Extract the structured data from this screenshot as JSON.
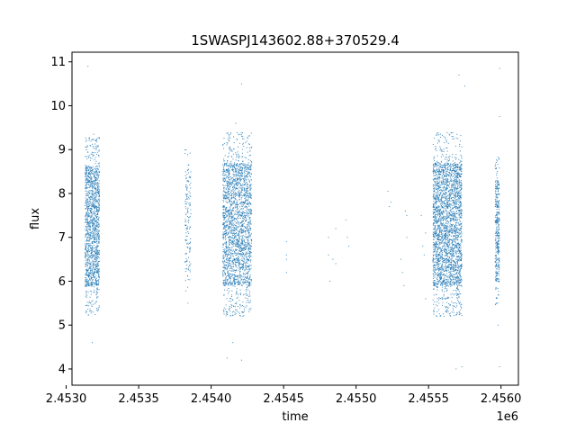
{
  "chart_data": {
    "type": "scatter",
    "title": "1SWASPJ143602.88+370529.4",
    "xlabel": "time",
    "ylabel": "flux",
    "x_offset_label": "1e6",
    "xlim": [
      2.45304,
      2.45612
    ],
    "ylim": [
      3.63,
      11.22
    ],
    "x_ticks": [
      2.453,
      2.4535,
      2.454,
      2.4545,
      2.455,
      2.4555,
      2.456
    ],
    "x_tick_labels": [
      "2.4530",
      "2.4535",
      "2.4540",
      "2.4545",
      "2.4550",
      "2.4555",
      "2.4560"
    ],
    "y_ticks": [
      4,
      5,
      6,
      7,
      8,
      9,
      10,
      11
    ],
    "y_tick_labels": [
      "4",
      "5",
      "6",
      "7",
      "8",
      "9",
      "10",
      "11"
    ],
    "grid": false,
    "marker_color": "#1f77b4",
    "clusters": [
      {
        "x_start": 2.45313,
        "x_end": 2.45323,
        "y_low": 5.9,
        "y_high": 8.6,
        "points": 1400
      },
      {
        "x_start": 2.45382,
        "x_end": 2.45386,
        "y_low": 6.2,
        "y_high": 8.5,
        "points": 150
      },
      {
        "x_start": 2.45408,
        "x_end": 2.45428,
        "y_low": 5.9,
        "y_high": 8.7,
        "points": 2200
      },
      {
        "x_start": 2.45553,
        "x_end": 2.45573,
        "y_low": 5.9,
        "y_high": 8.7,
        "points": 2600
      },
      {
        "x_start": 2.45596,
        "x_end": 2.45599,
        "y_low": 6.0,
        "y_high": 8.3,
        "points": 350
      }
    ],
    "sparse_points": [
      {
        "x": 2.45384,
        "y": 5.5
      },
      {
        "x": 2.45315,
        "y": 10.9
      },
      {
        "x": 2.45319,
        "y": 9.35
      },
      {
        "x": 2.45318,
        "y": 4.6
      },
      {
        "x": 2.45411,
        "y": 4.25
      },
      {
        "x": 2.45415,
        "y": 4.6
      },
      {
        "x": 2.45417,
        "y": 9.6
      },
      {
        "x": 2.45421,
        "y": 10.5
      },
      {
        "x": 2.45421,
        "y": 4.2
      },
      {
        "x": 2.45571,
        "y": 10.7
      },
      {
        "x": 2.45575,
        "y": 10.45
      },
      {
        "x": 2.45569,
        "y": 4.0
      },
      {
        "x": 2.45573,
        "y": 4.05
      },
      {
        "x": 2.45599,
        "y": 10.85
      },
      {
        "x": 2.45599,
        "y": 9.75
      },
      {
        "x": 2.45599,
        "y": 4.05
      },
      {
        "x": 2.45598,
        "y": 5.0
      },
      {
        "x": 2.45452,
        "y": 6.9
      },
      {
        "x": 2.45452,
        "y": 6.6
      },
      {
        "x": 2.45452,
        "y": 6.5
      },
      {
        "x": 2.45452,
        "y": 6.2
      },
      {
        "x": 2.45481,
        "y": 7.0
      },
      {
        "x": 2.45481,
        "y": 6.6
      },
      {
        "x": 2.45482,
        "y": 6.0
      },
      {
        "x": 2.45484,
        "y": 6.5
      },
      {
        "x": 2.45486,
        "y": 7.2
      },
      {
        "x": 2.45486,
        "y": 6.4
      },
      {
        "x": 2.45493,
        "y": 7.4
      },
      {
        "x": 2.45494,
        "y": 7.0
      },
      {
        "x": 2.45495,
        "y": 6.8
      },
      {
        "x": 2.45522,
        "y": 8.05
      },
      {
        "x": 2.45523,
        "y": 7.7
      },
      {
        "x": 2.45524,
        "y": 7.8
      },
      {
        "x": 2.45531,
        "y": 6.5
      },
      {
        "x": 2.45532,
        "y": 6.2
      },
      {
        "x": 2.45533,
        "y": 5.9
      },
      {
        "x": 2.45534,
        "y": 7.6
      },
      {
        "x": 2.45535,
        "y": 7.5
      },
      {
        "x": 2.45535,
        "y": 7.0
      },
      {
        "x": 2.45545,
        "y": 7.5
      },
      {
        "x": 2.45546,
        "y": 6.8
      },
      {
        "x": 2.45547,
        "y": 6.6
      },
      {
        "x": 2.45548,
        "y": 7.1
      },
      {
        "x": 2.45548,
        "y": 5.6
      }
    ]
  }
}
